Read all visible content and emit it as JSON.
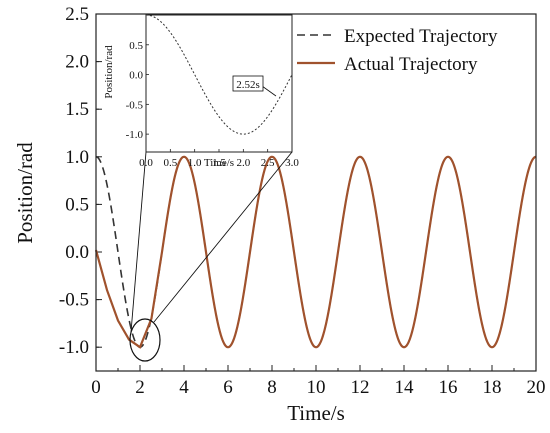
{
  "chart_data": {
    "type": "line",
    "xlabel": "Time/s",
    "ylabel": "Position/rad",
    "xlim": [
      0,
      20
    ],
    "ylim": [
      -1.25,
      2.5
    ],
    "xticks": [
      0,
      2,
      4,
      6,
      8,
      10,
      12,
      14,
      16,
      18,
      20
    ],
    "xtick_labels": [
      "0",
      "2",
      "4",
      "6",
      "8",
      "10",
      "12",
      "14",
      "16",
      "18",
      "20"
    ],
    "yticks": [
      -1.0,
      -0.5,
      0.0,
      0.5,
      1.0,
      1.5,
      2.0,
      2.5
    ],
    "ytick_labels": [
      "-1.0",
      "-0.5",
      "0.0",
      "0.5",
      "1.0",
      "1.5",
      "2.0",
      "2.5"
    ],
    "grid": false,
    "legend_position": "top-right",
    "series": [
      {
        "name": "Expected Trajectory",
        "style": "dashed",
        "color": "#333333",
        "function": "cos(pi*t/2)",
        "period": 4,
        "amplitude": 1,
        "x_range": [
          0,
          20
        ]
      },
      {
        "name": "Actual Trajectory",
        "style": "solid",
        "color": "#a0522d",
        "points": [
          [
            0,
            0.02
          ],
          [
            0.5,
            -0.4
          ],
          [
            1.0,
            -0.72
          ],
          [
            1.5,
            -0.92
          ],
          [
            2.0,
            -1.0
          ],
          [
            2.52,
            -0.7
          ],
          [
            3.0,
            0.0
          ]
        ],
        "then_follows": "cos(pi*t/2)",
        "x_range": [
          0,
          20
        ]
      }
    ],
    "inset": {
      "xlabel": "Time/s",
      "ylabel": "Position/rad",
      "xlim": [
        0,
        3
      ],
      "ylim": [
        -1.3,
        1.0
      ],
      "xticks": [
        0,
        0.5,
        1.0,
        1.5,
        2.0,
        2.5,
        3.0
      ],
      "xtick_labels": [
        "0.0",
        "0.5",
        "1.0",
        "1.5",
        "2.0",
        "2.5",
        "3.0"
      ],
      "yticks": [
        -1.0,
        -0.5,
        0.0,
        0.5
      ],
      "ytick_labels": [
        "-1.0",
        "-0.5",
        "0.0",
        "0.5"
      ],
      "annotation": "2.52s",
      "annotation_x": 2.52
    }
  }
}
